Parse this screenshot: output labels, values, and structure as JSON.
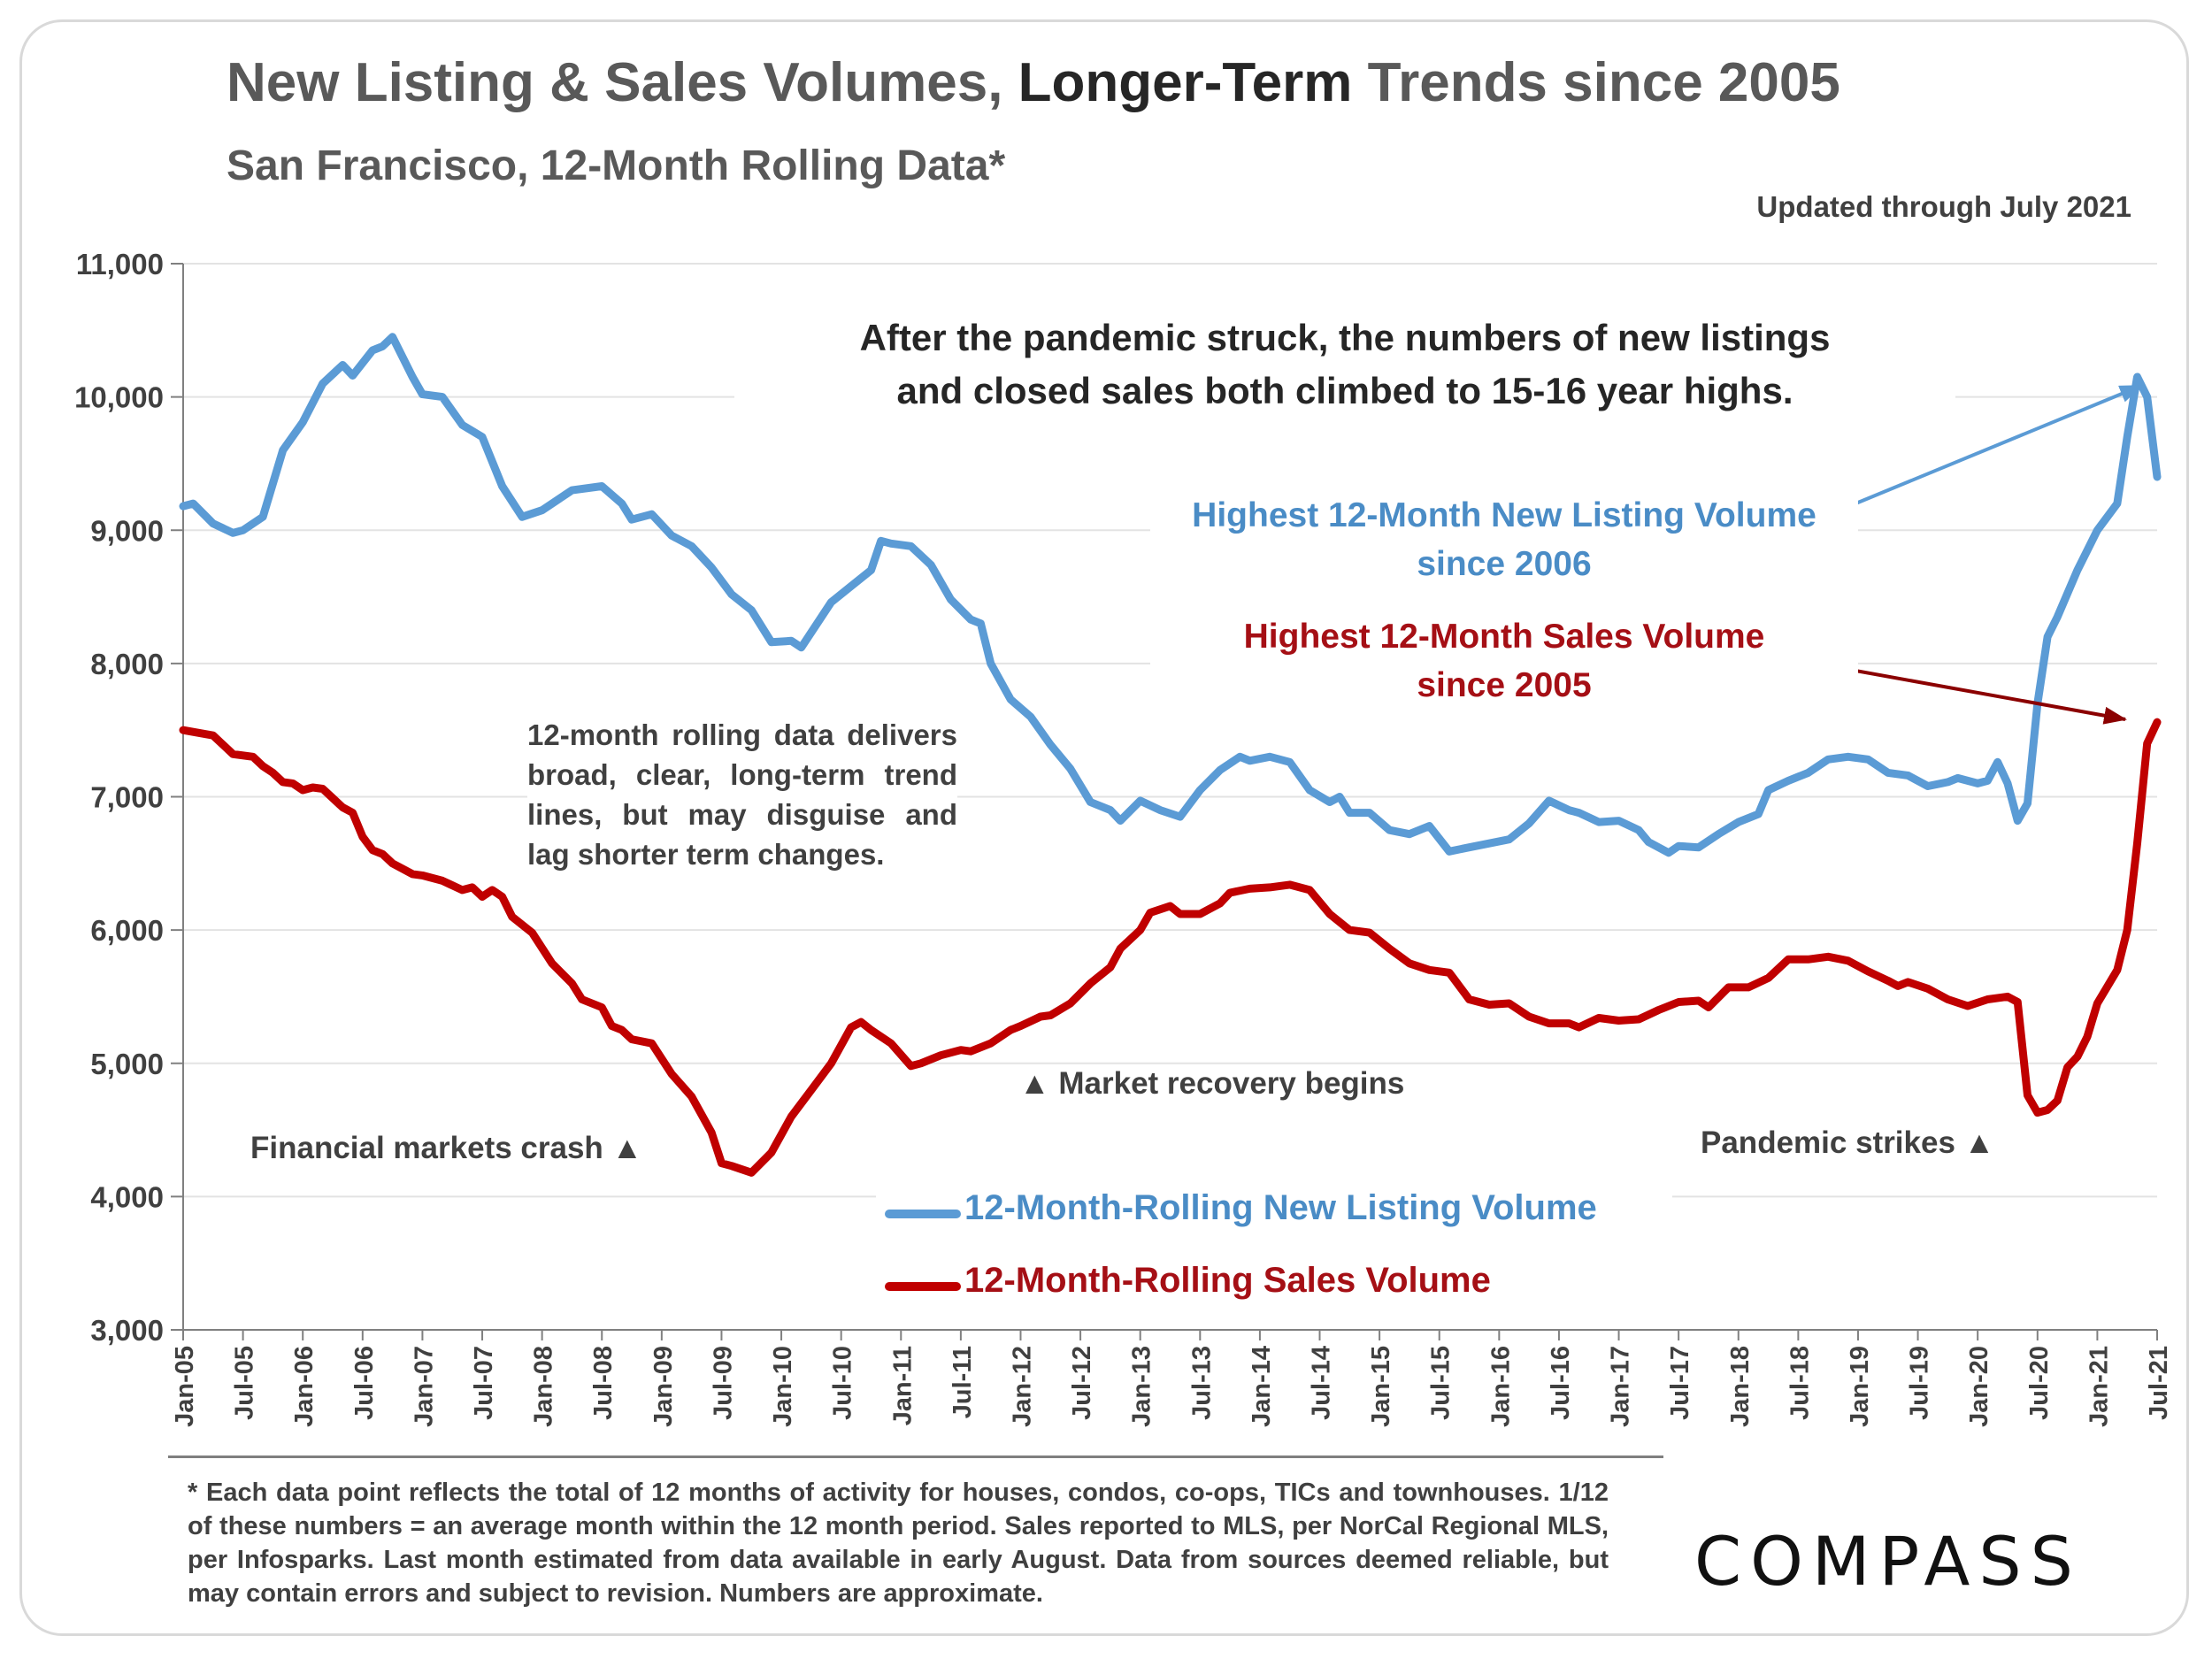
{
  "title_part1": "New Listing & Sales Volumes, ",
  "title_part2": "Longer-Term",
  "title_part3": " Trends since 2005",
  "subtitle": "San Francisco, 12-Month Rolling Data*",
  "updated": "Updated through July 2021",
  "headline_line1": "After the pandemic struck, the numbers of new listings",
  "headline_line2": "and closed sales both climbed to 15-16 year highs.",
  "callout_listing_line1": "Highest 12-Month New Listing Volume",
  "callout_listing_line2": "since 2006",
  "callout_sales_line1": "Highest 12-Month Sales Volume",
  "callout_sales_line2": "since 2005",
  "note": "12-month rolling data delivers broad, clear, long-term trend lines, but may disguise and lag shorter term changes.",
  "annotations": {
    "crash": "Financial markets crash ▲",
    "recovery": "▲  Market recovery begins",
    "pandemic": "Pandemic strikes ▲"
  },
  "footnote": "* Each data point reflects the total of 12 months of activity for houses, condos, co-ops, TICs and townhouses. 1/12 of these numbers = an average month within the 12 month period. Sales reported to MLS, per NorCal Regional MLS, per Infosparks. Last month estimated from data available in early August. Data from sources deemed reliable, but may contain errors and subject to revision. Numbers are approximate.",
  "logo": "COMPASS",
  "colors": {
    "listing": "#5b9bd5",
    "sales": "#c00000",
    "listing_text": "#4a8cc6",
    "sales_text": "#a50f15"
  },
  "chart_data": {
    "type": "line",
    "title": "New Listing & Sales Volumes, Longer-Term Trends since 2005",
    "subtitle": "San Francisco, 12-Month Rolling Data*",
    "xlabel": "",
    "ylabel": "",
    "ylim": [
      3000,
      11000
    ],
    "yticks": [
      "3,000",
      "4,000",
      "5,000",
      "6,000",
      "7,000",
      "8,000",
      "9,000",
      "10,000",
      "11,000"
    ],
    "xticks": [
      "Jan-05",
      "Jul-05",
      "Jan-06",
      "Jul-06",
      "Jan-07",
      "Jul-07",
      "Jan-08",
      "Jul-08",
      "Jan-09",
      "Jul-09",
      "Jan-10",
      "Jul-10",
      "Jan-11",
      "Jul-11",
      "Jan-12",
      "Jul-12",
      "Jan-13",
      "Jul-13",
      "Jan-14",
      "Jul-14",
      "Jan-15",
      "Jul-15",
      "Jan-16",
      "Jul-16",
      "Jan-17",
      "Jul-17",
      "Jan-18",
      "Jul-18",
      "Jan-19",
      "Jul-19",
      "Jan-20",
      "Jul-20",
      "Jan-21",
      "Jul-21"
    ],
    "grid": true,
    "legend": "bottom-center",
    "series": [
      {
        "name": "12-Month-Rolling New Listing Volume",
        "points": [
          [
            "Jan-05",
            9180
          ],
          [
            "Feb-05",
            9200
          ],
          [
            "Apr-05",
            9050
          ],
          [
            "Jun-05",
            8980
          ],
          [
            "Jul-05",
            9000
          ],
          [
            "Sep-05",
            9100
          ],
          [
            "Nov-05",
            9600
          ],
          [
            "Jan-06",
            9810
          ],
          [
            "Mar-06",
            10100
          ],
          [
            "May-06",
            10240
          ],
          [
            "Jun-06",
            10160
          ],
          [
            "Aug-06",
            10350
          ],
          [
            "Sep-06",
            10380
          ],
          [
            "Oct-06",
            10450
          ],
          [
            "Dec-06",
            10150
          ],
          [
            "Jan-07",
            10020
          ],
          [
            "Mar-07",
            10000
          ],
          [
            "May-07",
            9790
          ],
          [
            "Jul-07",
            9700
          ],
          [
            "Sep-07",
            9330
          ],
          [
            "Nov-07",
            9100
          ],
          [
            "Jan-08",
            9150
          ],
          [
            "Apr-08",
            9300
          ],
          [
            "Jul-08",
            9330
          ],
          [
            "Sep-08",
            9200
          ],
          [
            "Oct-08",
            9080
          ],
          [
            "Dec-08",
            9120
          ],
          [
            "Feb-09",
            8960
          ],
          [
            "Apr-09",
            8880
          ],
          [
            "Jun-09",
            8720
          ],
          [
            "Aug-09",
            8520
          ],
          [
            "Oct-09",
            8400
          ],
          [
            "Dec-09",
            8160
          ],
          [
            "Feb-10",
            8170
          ],
          [
            "Mar-10",
            8120
          ],
          [
            "Jun-10",
            8460
          ],
          [
            "Aug-10",
            8580
          ],
          [
            "Oct-10",
            8700
          ],
          [
            "Nov-10",
            8920
          ],
          [
            "Dec-10",
            8900
          ],
          [
            "Feb-11",
            8880
          ],
          [
            "Apr-11",
            8740
          ],
          [
            "Jun-11",
            8480
          ],
          [
            "Aug-11",
            8330
          ],
          [
            "Sep-11",
            8300
          ],
          [
            "Oct-11",
            8000
          ],
          [
            "Dec-11",
            7730
          ],
          [
            "Feb-12",
            7600
          ],
          [
            "Apr-12",
            7390
          ],
          [
            "Jun-12",
            7210
          ],
          [
            "Aug-12",
            6960
          ],
          [
            "Oct-12",
            6900
          ],
          [
            "Nov-12",
            6820
          ],
          [
            "Jan-13",
            6970
          ],
          [
            "Mar-13",
            6900
          ],
          [
            "May-13",
            6850
          ],
          [
            "Jul-13",
            7050
          ],
          [
            "Sep-13",
            7200
          ],
          [
            "Nov-13",
            7300
          ],
          [
            "Dec-13",
            7270
          ],
          [
            "Feb-14",
            7300
          ],
          [
            "Apr-14",
            7260
          ],
          [
            "Jun-14",
            7050
          ],
          [
            "Aug-14",
            6960
          ],
          [
            "Sep-14",
            7000
          ],
          [
            "Oct-14",
            6880
          ],
          [
            "Dec-14",
            6880
          ],
          [
            "Feb-15",
            6750
          ],
          [
            "Apr-15",
            6720
          ],
          [
            "Jun-15",
            6780
          ],
          [
            "Aug-15",
            6590
          ],
          [
            "Oct-15",
            6620
          ],
          [
            "Dec-15",
            6650
          ],
          [
            "Feb-16",
            6680
          ],
          [
            "Apr-16",
            6800
          ],
          [
            "Jun-16",
            6970
          ],
          [
            "Aug-16",
            6900
          ],
          [
            "Sep-16",
            6880
          ],
          [
            "Nov-16",
            6810
          ],
          [
            "Jan-17",
            6820
          ],
          [
            "Mar-17",
            6750
          ],
          [
            "Apr-17",
            6660
          ],
          [
            "Jun-17",
            6580
          ],
          [
            "Jul-17",
            6630
          ],
          [
            "Sep-17",
            6620
          ],
          [
            "Nov-17",
            6720
          ],
          [
            "Jan-18",
            6810
          ],
          [
            "Mar-18",
            6870
          ],
          [
            "Apr-18",
            7050
          ],
          [
            "Jun-18",
            7120
          ],
          [
            "Aug-18",
            7180
          ],
          [
            "Oct-18",
            7280
          ],
          [
            "Dec-18",
            7300
          ],
          [
            "Feb-19",
            7280
          ],
          [
            "Apr-19",
            7180
          ],
          [
            "Jun-19",
            7160
          ],
          [
            "Aug-19",
            7080
          ],
          [
            "Oct-19",
            7110
          ],
          [
            "Nov-19",
            7140
          ],
          [
            "Jan-20",
            7100
          ],
          [
            "Feb-20",
            7120
          ],
          [
            "Mar-20",
            7260
          ],
          [
            "Apr-20",
            7100
          ],
          [
            "May-20",
            6820
          ],
          [
            "Jun-20",
            6950
          ],
          [
            "Jul-20",
            7700
          ],
          [
            "Aug-20",
            8200
          ],
          [
            "Sep-20",
            8350
          ],
          [
            "Nov-20",
            8700
          ],
          [
            "Jan-21",
            9000
          ],
          [
            "Mar-21",
            9200
          ],
          [
            "Apr-21",
            9700
          ],
          [
            "May-21",
            10150
          ],
          [
            "Jun-21",
            10000
          ],
          [
            "Jul-21",
            9400
          ]
        ]
      },
      {
        "name": "12-Month-Rolling Sales Volume",
        "points": [
          [
            "Jan-05",
            7500
          ],
          [
            "Apr-05",
            7460
          ],
          [
            "Jun-05",
            7320
          ],
          [
            "Aug-05",
            7300
          ],
          [
            "Sep-05",
            7230
          ],
          [
            "Oct-05",
            7180
          ],
          [
            "Nov-05",
            7110
          ],
          [
            "Dec-05",
            7100
          ],
          [
            "Jan-06",
            7050
          ],
          [
            "Feb-06",
            7070
          ],
          [
            "Mar-06",
            7060
          ],
          [
            "May-06",
            6920
          ],
          [
            "Jun-06",
            6880
          ],
          [
            "Jul-06",
            6700
          ],
          [
            "Aug-06",
            6600
          ],
          [
            "Sep-06",
            6570
          ],
          [
            "Oct-06",
            6500
          ],
          [
            "Dec-06",
            6420
          ],
          [
            "Jan-07",
            6410
          ],
          [
            "Mar-07",
            6370
          ],
          [
            "May-07",
            6300
          ],
          [
            "Jun-07",
            6320
          ],
          [
            "Jul-07",
            6250
          ],
          [
            "Aug-07",
            6300
          ],
          [
            "Sep-07",
            6250
          ],
          [
            "Oct-07",
            6100
          ],
          [
            "Dec-07",
            5980
          ],
          [
            "Feb-08",
            5750
          ],
          [
            "Apr-08",
            5600
          ],
          [
            "May-08",
            5480
          ],
          [
            "Jul-08",
            5420
          ],
          [
            "Aug-08",
            5280
          ],
          [
            "Sep-08",
            5250
          ],
          [
            "Oct-08",
            5180
          ],
          [
            "Dec-08",
            5150
          ],
          [
            "Feb-09",
            4920
          ],
          [
            "Apr-09",
            4750
          ],
          [
            "Jun-09",
            4480
          ],
          [
            "Jul-09",
            4250
          ],
          [
            "Aug-09",
            4230
          ],
          [
            "Oct-09",
            4180
          ],
          [
            "Dec-09",
            4330
          ],
          [
            "Feb-10",
            4600
          ],
          [
            "Apr-10",
            4800
          ],
          [
            "Jun-10",
            5000
          ],
          [
            "Aug-10",
            5270
          ],
          [
            "Sep-10",
            5310
          ],
          [
            "Oct-10",
            5250
          ],
          [
            "Dec-10",
            5150
          ],
          [
            "Feb-11",
            4980
          ],
          [
            "Mar-11",
            5000
          ],
          [
            "May-11",
            5060
          ],
          [
            "Jul-11",
            5100
          ],
          [
            "Aug-11",
            5090
          ],
          [
            "Oct-11",
            5150
          ],
          [
            "Dec-11",
            5250
          ],
          [
            "Jan-12",
            5280
          ],
          [
            "Mar-12",
            5350
          ],
          [
            "Apr-12",
            5360
          ],
          [
            "Jun-12",
            5450
          ],
          [
            "Aug-12",
            5600
          ],
          [
            "Oct-12",
            5720
          ],
          [
            "Nov-12",
            5860
          ],
          [
            "Jan-13",
            6000
          ],
          [
            "Feb-13",
            6130
          ],
          [
            "Apr-13",
            6180
          ],
          [
            "May-13",
            6120
          ],
          [
            "Jul-13",
            6120
          ],
          [
            "Sep-13",
            6200
          ],
          [
            "Oct-13",
            6280
          ],
          [
            "Dec-13",
            6310
          ],
          [
            "Feb-14",
            6320
          ],
          [
            "Apr-14",
            6340
          ],
          [
            "Jun-14",
            6300
          ],
          [
            "Aug-14",
            6120
          ],
          [
            "Oct-14",
            6000
          ],
          [
            "Dec-14",
            5980
          ],
          [
            "Feb-15",
            5860
          ],
          [
            "Apr-15",
            5750
          ],
          [
            "Jun-15",
            5700
          ],
          [
            "Aug-15",
            5680
          ],
          [
            "Oct-15",
            5480
          ],
          [
            "Dec-15",
            5440
          ],
          [
            "Feb-16",
            5450
          ],
          [
            "Apr-16",
            5350
          ],
          [
            "Jun-16",
            5300
          ],
          [
            "Aug-16",
            5300
          ],
          [
            "Sep-16",
            5270
          ],
          [
            "Nov-16",
            5340
          ],
          [
            "Jan-17",
            5320
          ],
          [
            "Mar-17",
            5330
          ],
          [
            "May-17",
            5400
          ],
          [
            "Jul-17",
            5460
          ],
          [
            "Sep-17",
            5470
          ],
          [
            "Oct-17",
            5420
          ],
          [
            "Dec-17",
            5570
          ],
          [
            "Feb-18",
            5570
          ],
          [
            "Apr-18",
            5640
          ],
          [
            "Jun-18",
            5780
          ],
          [
            "Aug-18",
            5780
          ],
          [
            "Oct-18",
            5800
          ],
          [
            "Dec-18",
            5770
          ],
          [
            "Feb-19",
            5690
          ],
          [
            "Apr-19",
            5620
          ],
          [
            "May-19",
            5580
          ],
          [
            "Jun-19",
            5610
          ],
          [
            "Aug-19",
            5560
          ],
          [
            "Oct-19",
            5480
          ],
          [
            "Dec-19",
            5430
          ],
          [
            "Feb-20",
            5480
          ],
          [
            "Apr-20",
            5500
          ],
          [
            "May-20",
            5460
          ],
          [
            "Jun-20",
            4760
          ],
          [
            "Jul-20",
            4630
          ],
          [
            "Aug-20",
            4650
          ],
          [
            "Sep-20",
            4720
          ],
          [
            "Oct-20",
            4970
          ],
          [
            "Nov-20",
            5050
          ],
          [
            "Dec-20",
            5200
          ],
          [
            "Jan-21",
            5450
          ],
          [
            "Mar-21",
            5700
          ],
          [
            "Apr-21",
            6000
          ],
          [
            "May-21",
            6650
          ],
          [
            "Jun-21",
            7400
          ],
          [
            "Jul-21",
            7560
          ]
        ]
      }
    ]
  }
}
